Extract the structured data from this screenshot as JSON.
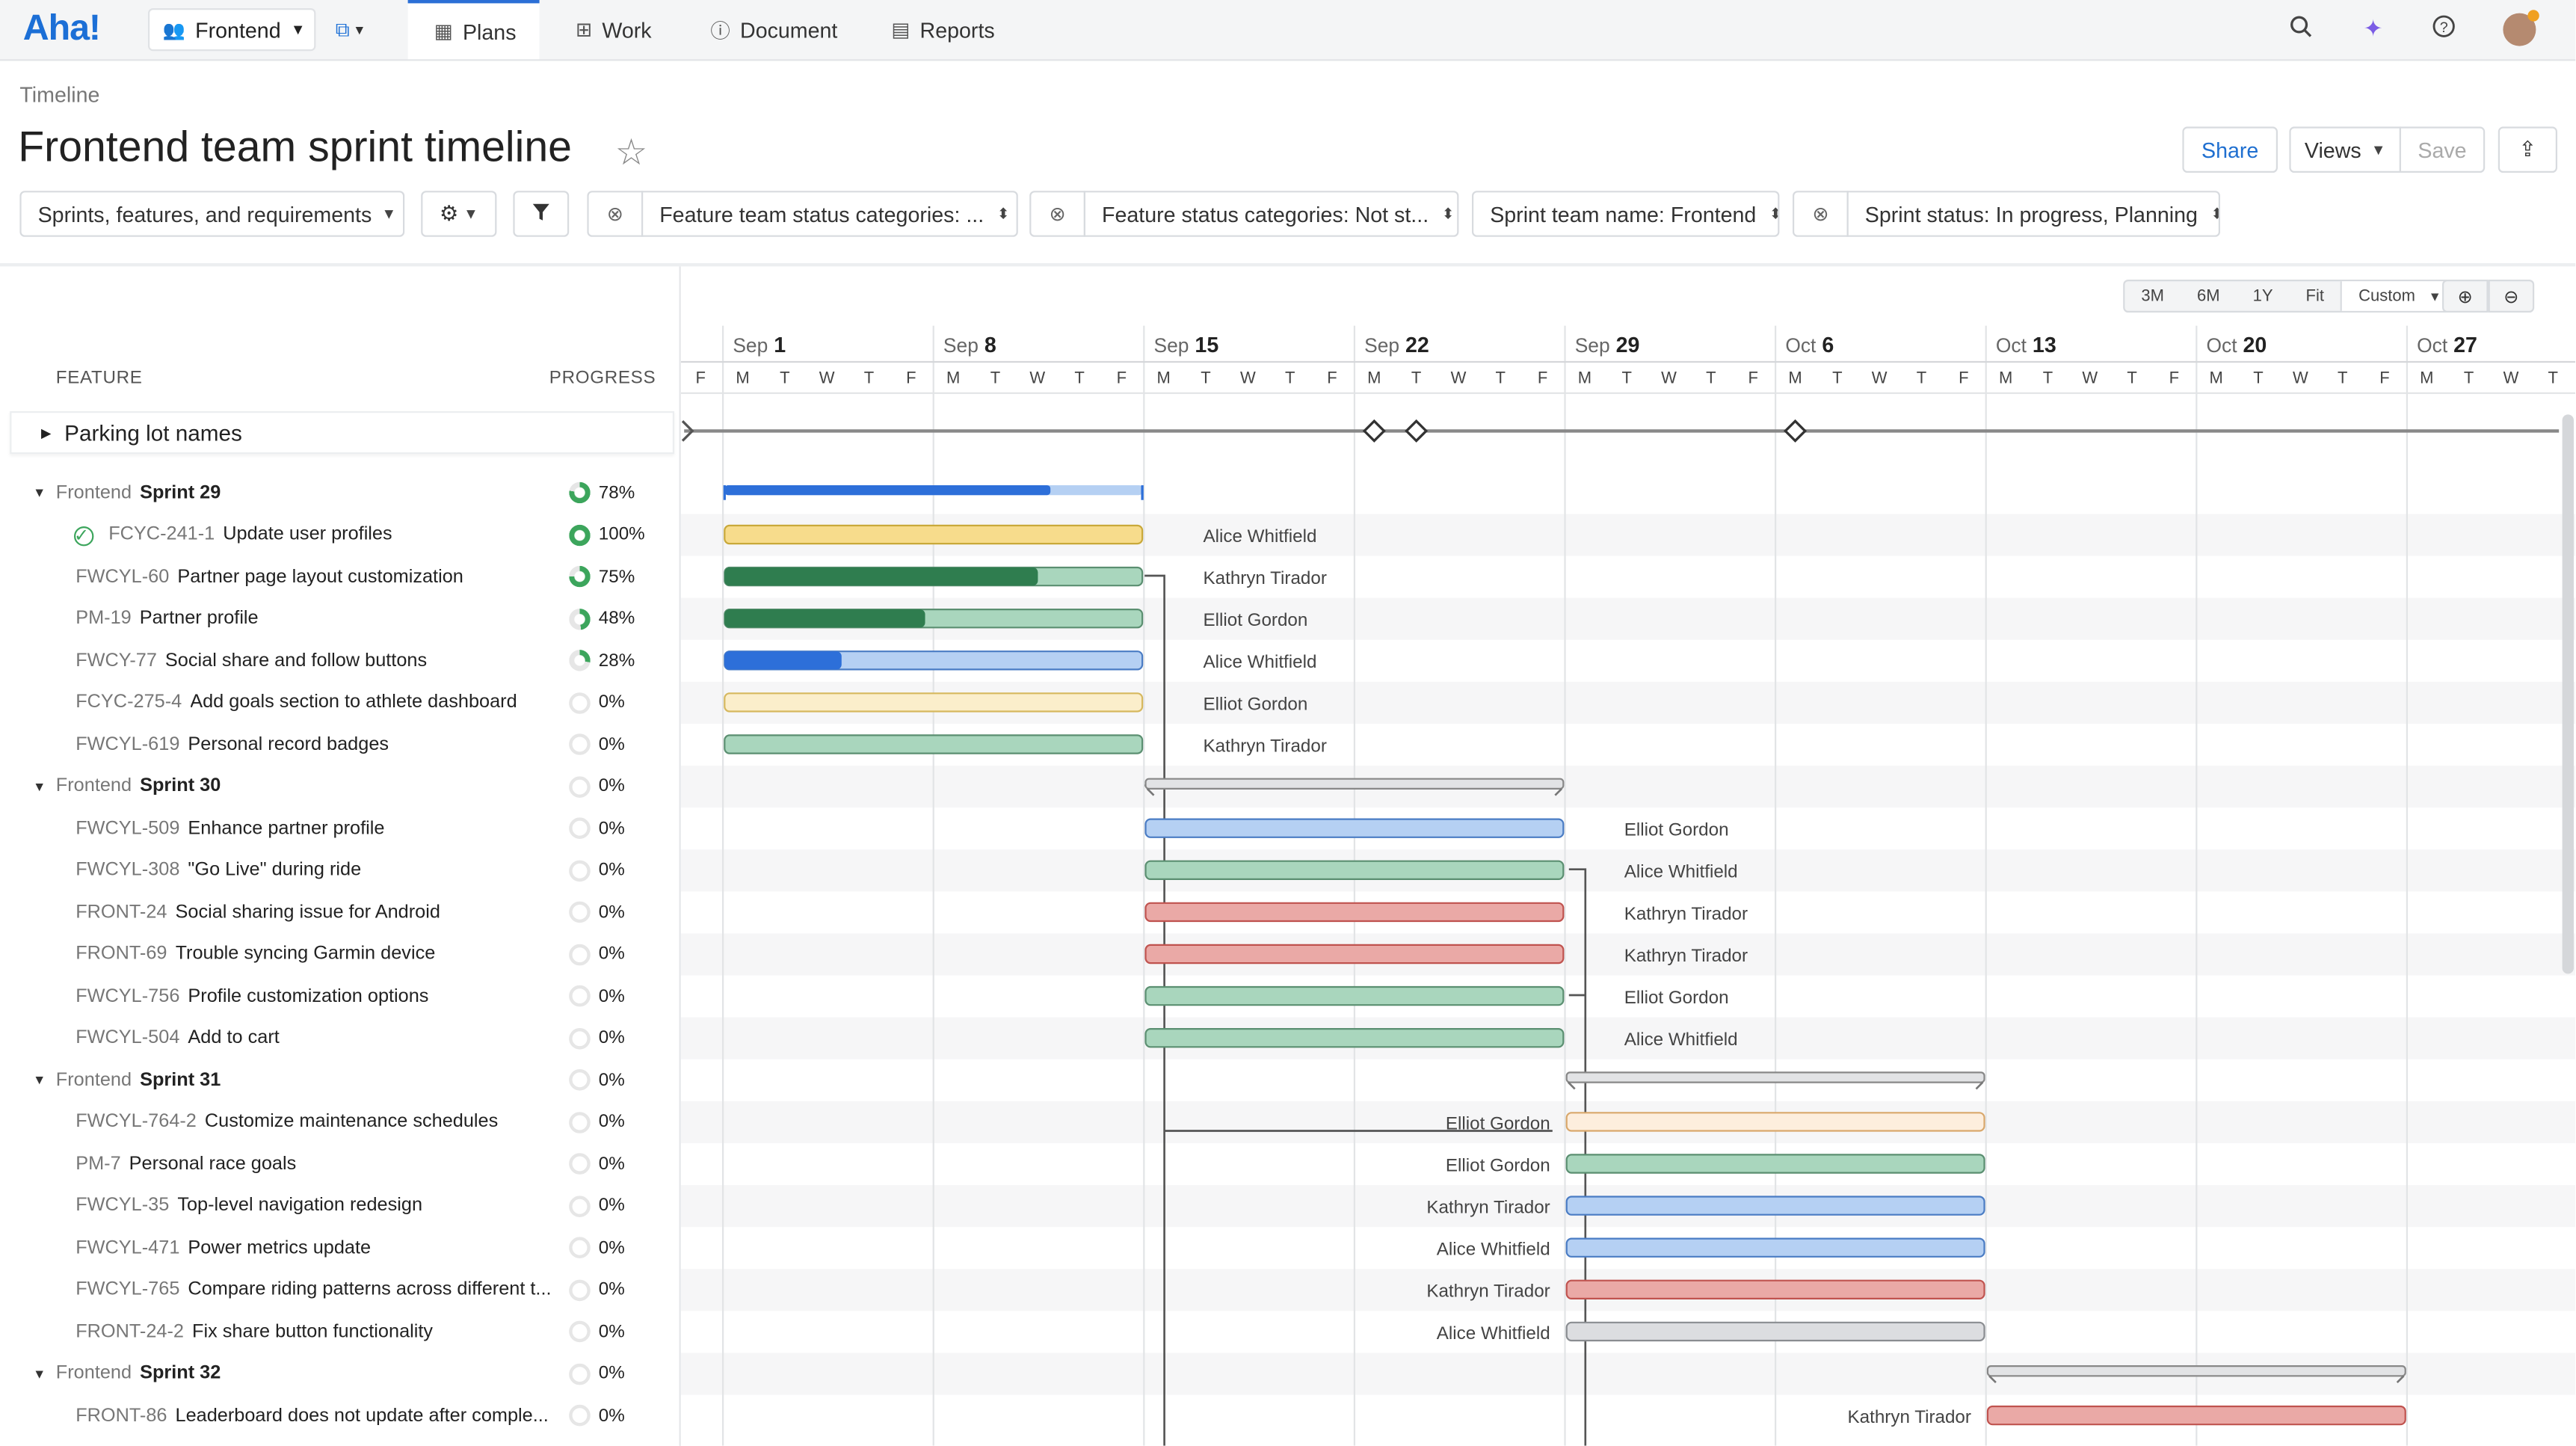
{
  "app": {
    "logo": "Aha!"
  },
  "nav": {
    "workspace": "Frontend",
    "tabs": [
      {
        "label": "Plans",
        "icon": "calendar-icon",
        "active": true
      },
      {
        "label": "Work",
        "icon": "grid-icon",
        "active": false
      },
      {
        "label": "Document",
        "icon": "info-icon",
        "active": false
      },
      {
        "label": "Reports",
        "icon": "chart-icon",
        "active": false
      }
    ]
  },
  "header": {
    "breadcrumb": "Timeline",
    "title": "Frontend team sprint timeline",
    "share_label": "Share",
    "views_label": "Views",
    "save_label": "Save"
  },
  "filters": {
    "view_select": "Sprints, features, and requirements",
    "items": [
      "Feature team status categories: ...",
      "Feature status categories: Not st...",
      "Sprint team name: Frontend",
      "Sprint status: In progress, Planning"
    ]
  },
  "zoom": {
    "options": [
      "3M",
      "6M",
      "1Y",
      "Fit"
    ],
    "selected": "Custom"
  },
  "columns": {
    "feature": "FEATURE",
    "progress": "PROGRESS"
  },
  "parking_lot": "Parking lot names",
  "timeline": {
    "weeks": [
      {
        "m": "Sep",
        "d": "1"
      },
      {
        "m": "Sep",
        "d": "8"
      },
      {
        "m": "Sep",
        "d": "15"
      },
      {
        "m": "Sep",
        "d": "22"
      },
      {
        "m": "Sep",
        "d": "29"
      },
      {
        "m": "Oct",
        "d": "6"
      },
      {
        "m": "Oct",
        "d": "13"
      },
      {
        "m": "Oct",
        "d": "20"
      },
      {
        "m": "Oct",
        "d": "27"
      }
    ],
    "days": [
      "F",
      "M",
      "T",
      "W",
      "T",
      "F",
      "M",
      "T",
      "W",
      "T",
      "F",
      "M",
      "T",
      "W",
      "T",
      "F",
      "M",
      "T",
      "W",
      "T",
      "F",
      "M",
      "T",
      "W",
      "T",
      "F",
      "M",
      "T",
      "W",
      "T",
      "F",
      "M",
      "T",
      "W",
      "T",
      "F",
      "M",
      "T",
      "W",
      "T",
      "F",
      "M",
      "T",
      "W",
      "T"
    ],
    "first_day": "2025-08-29",
    "milestones": [
      "2025-09-21",
      "2025-09-23",
      "2025-10-06"
    ]
  },
  "rows": [
    {
      "type": "sprint",
      "team": "Frontend",
      "name": "Sprint 29",
      "progress": 78,
      "start": "2025-09-01",
      "end": "2025-09-12",
      "color": "#2d6fd9"
    },
    {
      "type": "feature",
      "key": "FCYC-241-1",
      "name": "Update user profiles",
      "progress": 100,
      "done": true,
      "start": "2025-09-01",
      "end": "2025-09-12",
      "assignee": "Alice Whitfield",
      "color": "#f7dc8c",
      "edge": "#c9a93a"
    },
    {
      "type": "feature",
      "key": "FWCYL-60",
      "name": "Partner page layout customization",
      "progress": 75,
      "start": "2025-09-01",
      "end": "2025-09-12",
      "assignee": "Kathryn Tirador",
      "color": "#2f7d4f",
      "light": "#a9d6bd",
      "edge": "#5b8f71"
    },
    {
      "type": "feature",
      "key": "PM-19",
      "name": "Partner profile",
      "progress": 48,
      "start": "2025-09-01",
      "end": "2025-09-12",
      "assignee": "Elliot Gordon",
      "color": "#2f7d4f",
      "light": "#a9d6bd",
      "edge": "#5b8f71"
    },
    {
      "type": "feature",
      "key": "FWCY-77",
      "name": "Social share and follow buttons",
      "progress": 28,
      "start": "2025-09-01",
      "end": "2025-09-12",
      "assignee": "Alice Whitfield",
      "color": "#2d6fd9",
      "light": "#b5d0f3",
      "edge": "#4a7cc4"
    },
    {
      "type": "feature",
      "key": "FCYC-275-4",
      "name": "Add goals section to athlete dashboard",
      "progress": 0,
      "start": "2025-09-01",
      "end": "2025-09-12",
      "assignee": "Elliot Gordon",
      "color": "#fbeecb",
      "edge": "#d6b85e"
    },
    {
      "type": "feature",
      "key": "FWCYL-619",
      "name": "Personal record badges",
      "progress": 0,
      "start": "2025-09-01",
      "end": "2025-09-12",
      "assignee": "Kathryn Tirador",
      "color": "#a9d6bd",
      "edge": "#5b8f71"
    },
    {
      "type": "sprint",
      "team": "Frontend",
      "name": "Sprint 30",
      "progress": 0,
      "start": "2025-09-15",
      "end": "2025-09-26",
      "color": "#c9cbce"
    },
    {
      "type": "feature",
      "key": "FWCYL-509",
      "name": "Enhance partner profile",
      "progress": 0,
      "start": "2025-09-15",
      "end": "2025-09-26",
      "assignee": "Elliot Gordon",
      "color": "#b5d0f3",
      "edge": "#4a7cc4"
    },
    {
      "type": "feature",
      "key": "FWCYL-308",
      "name": "\"Go Live\" during ride",
      "progress": 0,
      "start": "2025-09-15",
      "end": "2025-09-26",
      "assignee": "Alice Whitfield",
      "color": "#a9d6bd",
      "edge": "#5b8f71"
    },
    {
      "type": "feature",
      "key": "FRONT-24",
      "name": "Social sharing issue for Android",
      "progress": 0,
      "start": "2025-09-15",
      "end": "2025-09-26",
      "assignee": "Kathryn Tirador",
      "color": "#eaa9a6",
      "edge": "#c0534f"
    },
    {
      "type": "feature",
      "key": "FRONT-69",
      "name": "Trouble syncing Garmin device",
      "progress": 0,
      "start": "2025-09-15",
      "end": "2025-09-26",
      "assignee": "Kathryn Tirador",
      "color": "#eaa9a6",
      "edge": "#c0534f"
    },
    {
      "type": "feature",
      "key": "FWCYL-756",
      "name": "Profile customization options",
      "progress": 0,
      "start": "2025-09-15",
      "end": "2025-09-26",
      "assignee": "Elliot Gordon",
      "color": "#a9d6bd",
      "edge": "#5b8f71"
    },
    {
      "type": "feature",
      "key": "FWCYL-504",
      "name": "Add to cart",
      "progress": 0,
      "start": "2025-09-15",
      "end": "2025-09-26",
      "assignee": "Alice Whitfield",
      "color": "#a9d6bd",
      "edge": "#5b8f71"
    },
    {
      "type": "sprint",
      "team": "Frontend",
      "name": "Sprint 31",
      "progress": 0,
      "start": "2025-09-29",
      "end": "2025-10-10",
      "color": "#c9cbce"
    },
    {
      "type": "feature",
      "key": "FWCYL-764-2",
      "name": "Customize maintenance schedules",
      "progress": 0,
      "start": "2025-09-29",
      "end": "2025-10-10",
      "assignee": "Elliot Gordon",
      "label_left": true,
      "color": "#fdeedd",
      "edge": "#d9a86c"
    },
    {
      "type": "feature",
      "key": "PM-7",
      "name": "Personal race goals",
      "progress": 0,
      "start": "2025-09-29",
      "end": "2025-10-10",
      "assignee": "Elliot Gordon",
      "label_left": true,
      "color": "#a9d6bd",
      "edge": "#5b8f71"
    },
    {
      "type": "feature",
      "key": "FWCYL-35",
      "name": "Top-level navigation redesign",
      "progress": 0,
      "start": "2025-09-29",
      "end": "2025-10-10",
      "assignee": "Kathryn Tirador",
      "label_left": true,
      "color": "#b5d0f3",
      "edge": "#4a7cc4"
    },
    {
      "type": "feature",
      "key": "FWCYL-471",
      "name": "Power metrics update",
      "progress": 0,
      "start": "2025-09-29",
      "end": "2025-10-10",
      "assignee": "Alice Whitfield",
      "label_left": true,
      "color": "#b5d0f3",
      "edge": "#4a7cc4"
    },
    {
      "type": "feature",
      "key": "FWCYL-765",
      "name": "Compare riding patterns across different t...",
      "progress": 0,
      "start": "2025-09-29",
      "end": "2025-10-10",
      "assignee": "Kathryn Tirador",
      "label_left": true,
      "color": "#eaa9a6",
      "edge": "#c0534f"
    },
    {
      "type": "feature",
      "key": "FRONT-24-2",
      "name": "Fix share button functionality",
      "progress": 0,
      "start": "2025-09-29",
      "end": "2025-10-10",
      "assignee": "Alice Whitfield",
      "label_left": true,
      "color": "#dcdde0",
      "edge": "#8a8d91"
    },
    {
      "type": "sprint",
      "team": "Frontend",
      "name": "Sprint 32",
      "progress": 0,
      "start": "2025-10-13",
      "end": "2025-10-24",
      "color": "#c9cbce"
    },
    {
      "type": "feature",
      "key": "FRONT-86",
      "name": "Leaderboard does not update after comple...",
      "progress": 0,
      "start": "2025-10-13",
      "end": "2025-10-24",
      "assignee": "Kathryn Tirador",
      "label_left": true,
      "color": "#eaa9a6",
      "edge": "#c0534f"
    }
  ]
}
